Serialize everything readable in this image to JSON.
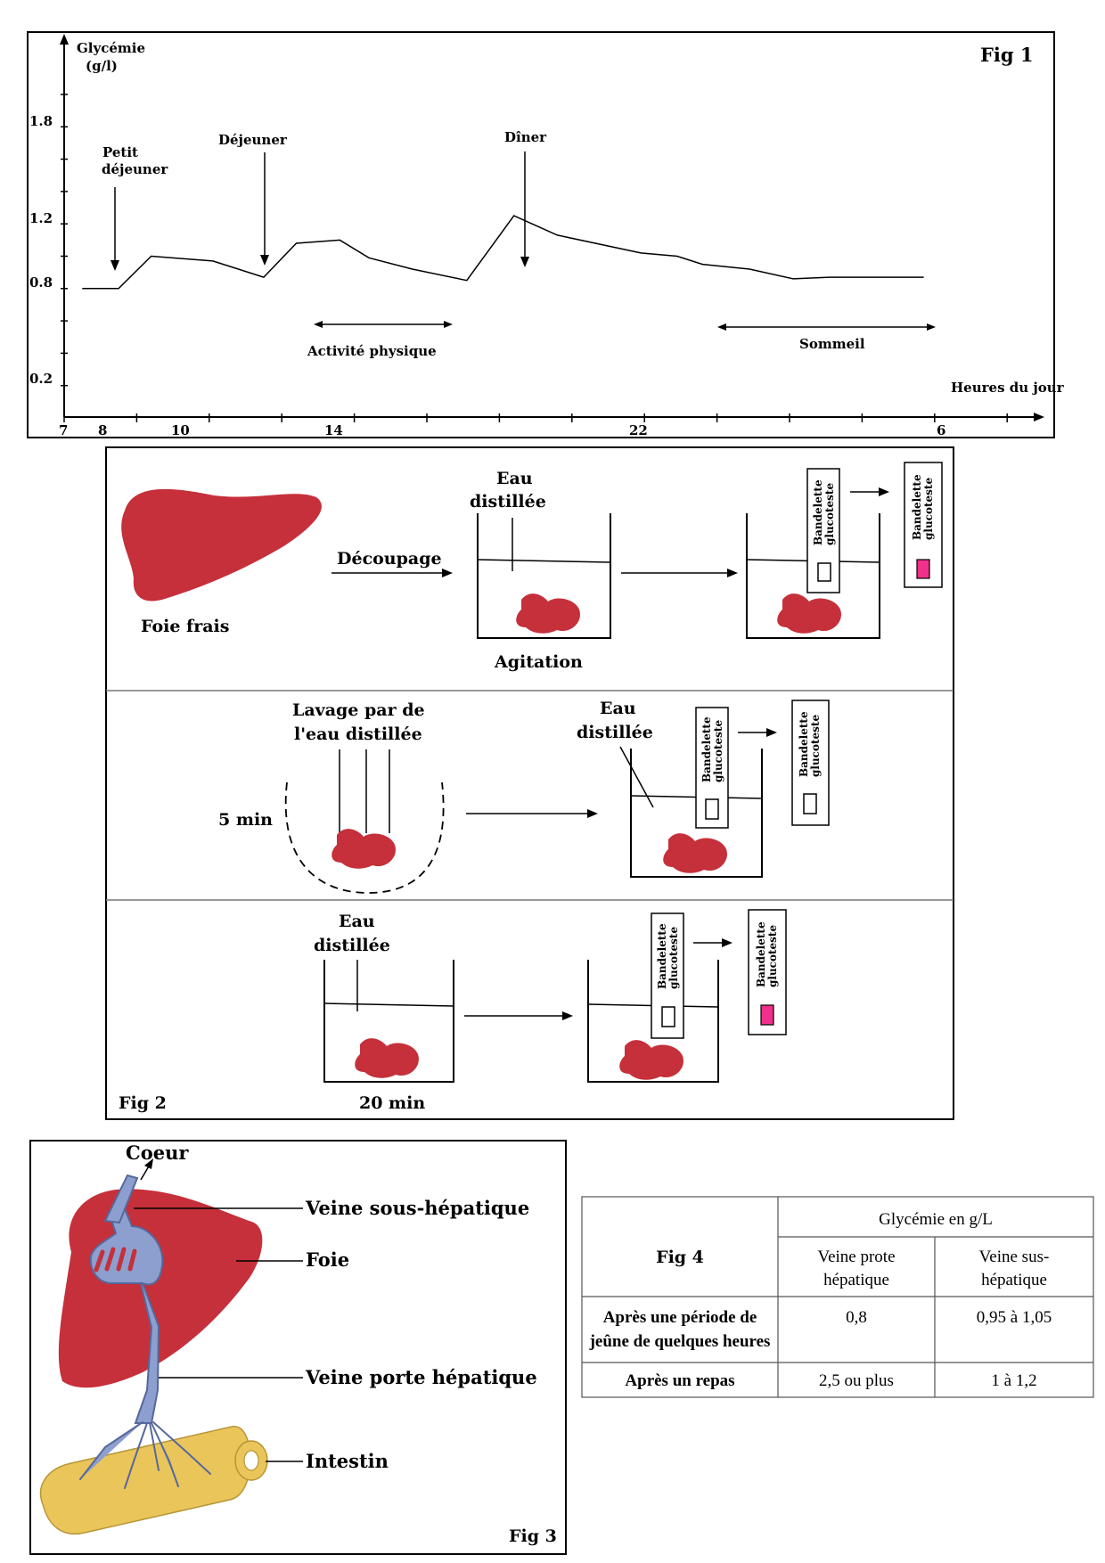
{
  "fig1": {
    "label": "Fig 1",
    "ylabel_line1": "Glycémie",
    "ylabel_line2": "(g/l)",
    "xlabel": "Heures du jour",
    "y_ticks": [
      "1.8",
      "1.2",
      "0.8",
      "0.2"
    ],
    "x_ticks": [
      "7",
      "8",
      "10",
      "14",
      "22",
      "6"
    ],
    "annotations": {
      "petit_line1": "Petit",
      "petit_line2": "déjeuner",
      "dejeuner": "Déjeuner",
      "diner": "Dîner",
      "activite": "Activité physique",
      "sommeil": "Sommeil"
    }
  },
  "chart_data": {
    "type": "line",
    "xlabel": "Heures du jour",
    "ylabel": "Glycémie (g/l)",
    "ylim": [
      0,
      2.0
    ],
    "y_ticks": [
      0.2,
      0.8,
      1.2,
      1.8
    ],
    "x_tick_labels": [
      "7",
      "8",
      "10",
      "14",
      "22",
      "6"
    ],
    "series": [
      {
        "x_hours_from_7": [
          0.5,
          1.5,
          2.4,
          4.1,
          5.5,
          6.4,
          7.6,
          8.4,
          9.6,
          11.1,
          12.4,
          13.6,
          15.9,
          16.9,
          17.6,
          18.9,
          20.1,
          21.1,
          22.9,
          23.7
        ],
        "values": [
          0.8,
          0.8,
          1.0,
          0.97,
          0.87,
          1.08,
          1.1,
          0.99,
          0.92,
          0.85,
          1.25,
          1.13,
          1.02,
          1.0,
          0.95,
          0.92,
          0.86,
          0.87,
          0.87,
          0.87
        ]
      }
    ]
  },
  "fig2": {
    "label": "Fig 2",
    "row1": {
      "foie": "Foie frais",
      "decoupage": "Découpage",
      "eau_line1": "Eau",
      "eau_line2": "distillée",
      "agitation": "Agitation",
      "strip_line1": "Bandelette",
      "strip_line2": "glucoteste"
    },
    "row2": {
      "lavage_line1": "Lavage par de",
      "lavage_line2": "l'eau distillée",
      "time": "5 min",
      "eau_line1": "Eau",
      "eau_line2": "distillée",
      "strip_line1": "Bandelette",
      "strip_line2": "glucoteste"
    },
    "row3": {
      "eau_line1": "Eau",
      "eau_line2": "distillée",
      "time": "20 min",
      "strip_line1": "Bandelette",
      "strip_line2": "glucoteste"
    },
    "colors": {
      "liver": "#c5303a",
      "positive": "#f0308a"
    }
  },
  "fig3": {
    "label": "Fig 3",
    "coeur": "Coeur",
    "veine_sous": "Veine sous-hépatique",
    "foie": "Foie",
    "veine_porte": "Veine porte hépatique",
    "intestin": "Intestin",
    "colors": {
      "liver": "#c5303a",
      "vein": "#8d9fcf",
      "intestine": "#e9c55a"
    }
  },
  "fig4": {
    "label": "Fig 4",
    "group_header": "Glycémie en g/L",
    "col1_line1": "Veine prote",
    "col1_line2": "hépatique",
    "col2_line1": "Veine sus-",
    "col2_line2": "hépatique",
    "row1_line1": "Après une période de",
    "row1_line2": "jeûne de quelques heures",
    "row1_c1": "0,8",
    "row1_c2": "0,95 à 1,05",
    "row2_label": "Après un repas",
    "row2_c1": "2,5 ou plus",
    "row2_c2": "1 à 1,2"
  }
}
